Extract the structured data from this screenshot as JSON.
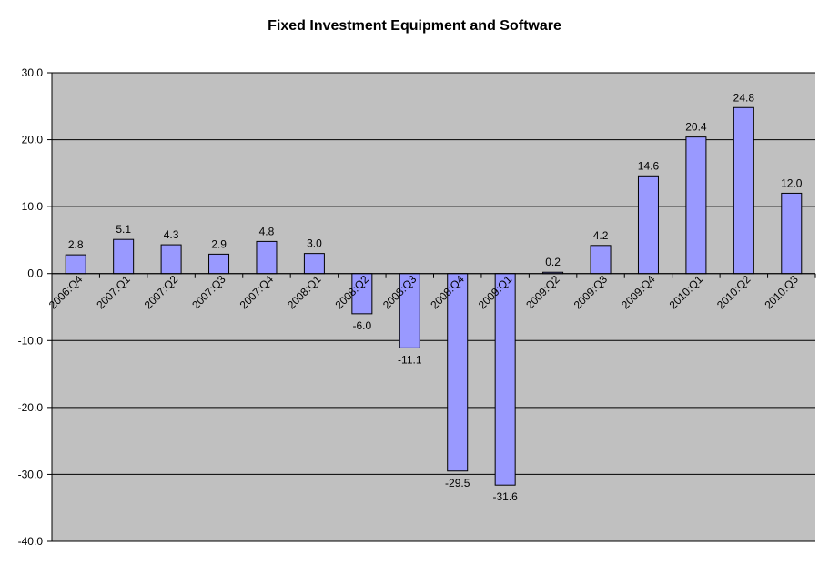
{
  "chart_data": {
    "type": "bar",
    "title": "Fixed Investment Equipment and Software",
    "xlabel": "",
    "ylabel": "",
    "ylim": [
      -40,
      30
    ],
    "ytick_step": 10,
    "ytick_labels": [
      "30.0",
      "20.0",
      "10.0",
      "0.0",
      "-10.0",
      "-20.0",
      "-30.0",
      "-40.0"
    ],
    "grid": true,
    "legend": "none",
    "categories": [
      "2006:Q4",
      "2007:Q1",
      "2007:Q2",
      "2007:Q3",
      "2007:Q4",
      "2008:Q1",
      "2008:Q2",
      "2008:Q3",
      "2008:Q4",
      "2009:Q1",
      "2009:Q2",
      "2009:Q3",
      "2009:Q4",
      "2010:Q1",
      "2010:Q2",
      "2010:Q3"
    ],
    "values": [
      2.8,
      5.1,
      4.3,
      2.9,
      4.8,
      3.0,
      -6.0,
      -11.1,
      -29.5,
      -31.6,
      0.2,
      4.2,
      14.6,
      20.4,
      24.8,
      12.0
    ],
    "data_labels": [
      "2.8",
      "5.1",
      "4.3",
      "2.9",
      "4.8",
      "3.0",
      "-6.0",
      "-11.1",
      "-29.5",
      "-31.6",
      "0.2",
      "4.2",
      "14.6",
      "20.4",
      "24.8",
      "12.0"
    ],
    "colors": {
      "bar_fill": "#9999ff",
      "bar_stroke": "#000000",
      "plot_background": "#c0c0c0",
      "gridline": "#000000"
    }
  }
}
